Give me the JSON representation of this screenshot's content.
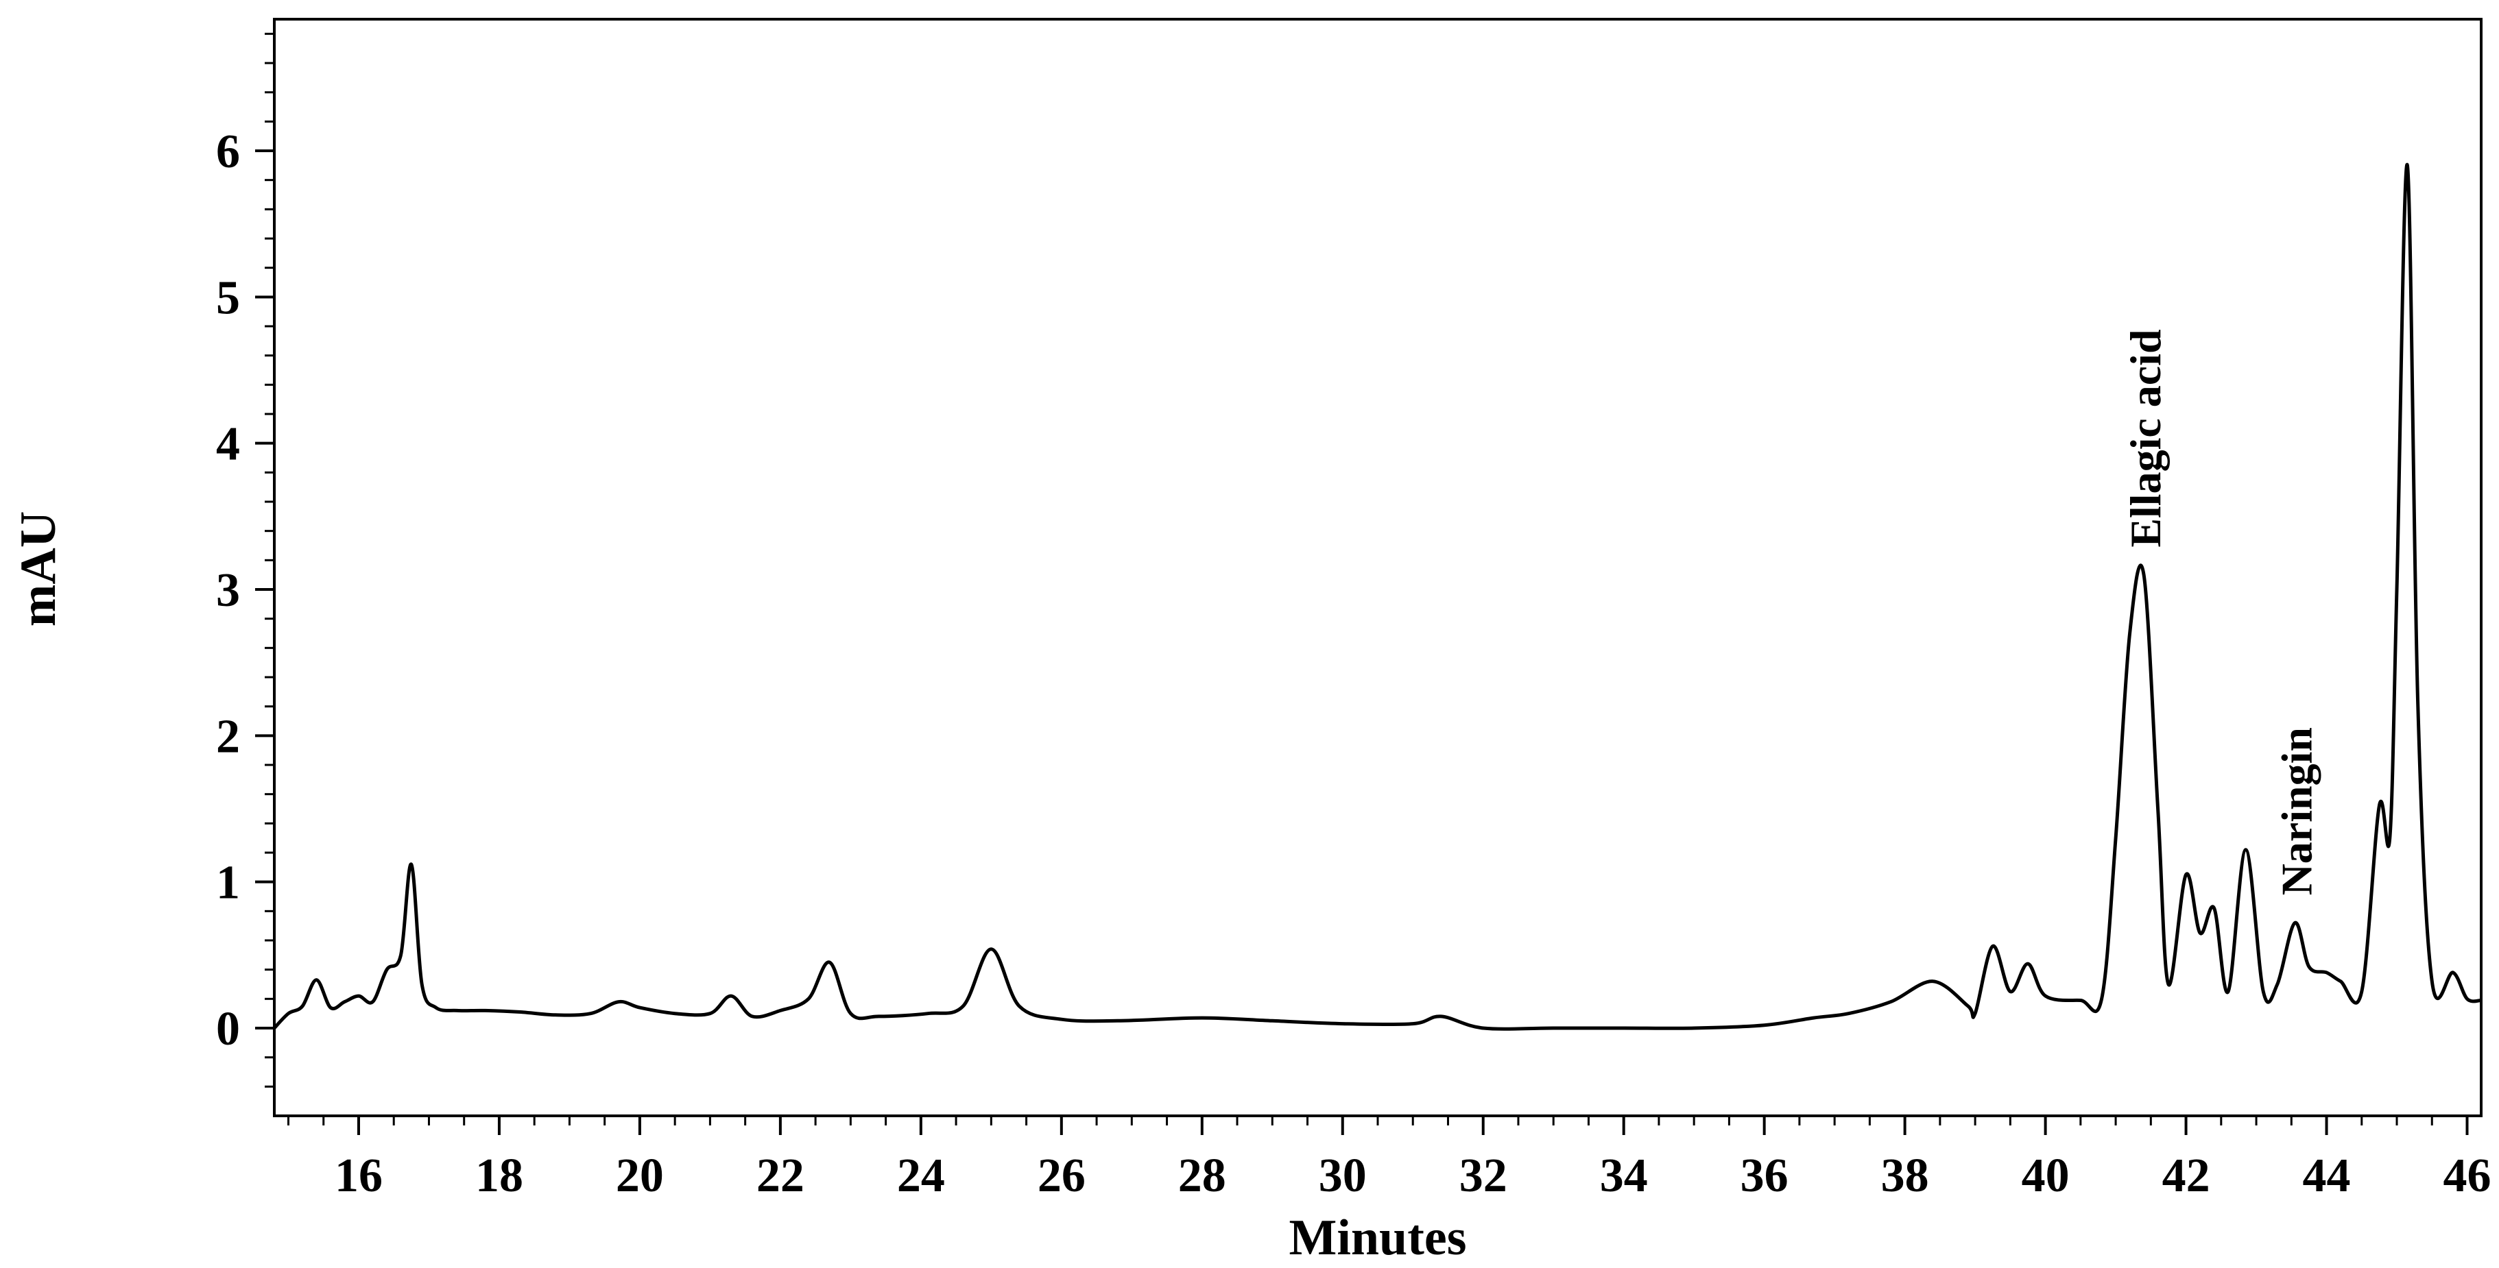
{
  "chart_data": {
    "type": "line",
    "xlabel": "Minutes",
    "ylabel": "mAU",
    "xlim": [
      14.8,
      46.2
    ],
    "ylim": [
      -0.6,
      6.9
    ],
    "xticks": [
      16,
      18,
      20,
      22,
      24,
      26,
      28,
      30,
      32,
      34,
      36,
      38,
      40,
      42,
      44,
      46
    ],
    "yticks": [
      0,
      1,
      2,
      3,
      4,
      5,
      6
    ],
    "grid": false,
    "series": [
      {
        "x": [
          14.8,
          15.0,
          15.2,
          15.4,
          15.6,
          15.8,
          16.0,
          16.2,
          16.4,
          16.6,
          16.75,
          16.9,
          17.1,
          17.4,
          17.8,
          18.3,
          18.8,
          19.3,
          19.7,
          20.0,
          20.5,
          21.0,
          21.3,
          21.6,
          22.0,
          22.4,
          22.7,
          23.0,
          23.4,
          24.1,
          24.6,
          25.0,
          25.4,
          26.0,
          26.8,
          28.0,
          29.0,
          30.0,
          31.0,
          31.4,
          32.0,
          33.0,
          34.0,
          35.0,
          36.0,
          36.7,
          37.2,
          37.8,
          38.4,
          38.9,
          39.0,
          39.25,
          39.5,
          39.75,
          40.0,
          40.5,
          40.8,
          41.0,
          41.2,
          41.4,
          41.6,
          41.75,
          42.0,
          42.2,
          42.4,
          42.6,
          42.85,
          43.1,
          43.3,
          43.55,
          43.75,
          44.0,
          44.2,
          44.5,
          44.75,
          44.9,
          45.0,
          45.15,
          45.3,
          45.5,
          45.8,
          46.0,
          46.2
        ],
        "y": [
          0.0,
          0.1,
          0.15,
          0.33,
          0.14,
          0.18,
          0.22,
          0.18,
          0.4,
          0.5,
          1.12,
          0.3,
          0.14,
          0.12,
          0.12,
          0.11,
          0.09,
          0.1,
          0.18,
          0.14,
          0.1,
          0.1,
          0.22,
          0.08,
          0.12,
          0.2,
          0.45,
          0.1,
          0.08,
          0.1,
          0.15,
          0.54,
          0.15,
          0.06,
          0.05,
          0.07,
          0.05,
          0.03,
          0.03,
          0.08,
          0.0,
          0.0,
          0.0,
          0.0,
          0.02,
          0.07,
          0.1,
          0.18,
          0.32,
          0.15,
          0.1,
          0.56,
          0.25,
          0.44,
          0.22,
          0.19,
          0.2,
          1.3,
          2.7,
          3.1,
          1.5,
          0.3,
          1.05,
          0.65,
          0.82,
          0.25,
          1.22,
          0.25,
          0.3,
          0.72,
          0.42,
          0.38,
          0.32,
          0.25,
          1.52,
          1.3,
          3.0,
          5.9,
          2.2,
          0.32,
          0.38,
          0.2,
          0.19
        ]
      }
    ],
    "annotations": [
      {
        "text": "Ellagic acid",
        "x": 41.4,
        "y": 3.1
      },
      {
        "text": "Naringin",
        "x": 43.55,
        "y": 0.72
      }
    ]
  }
}
